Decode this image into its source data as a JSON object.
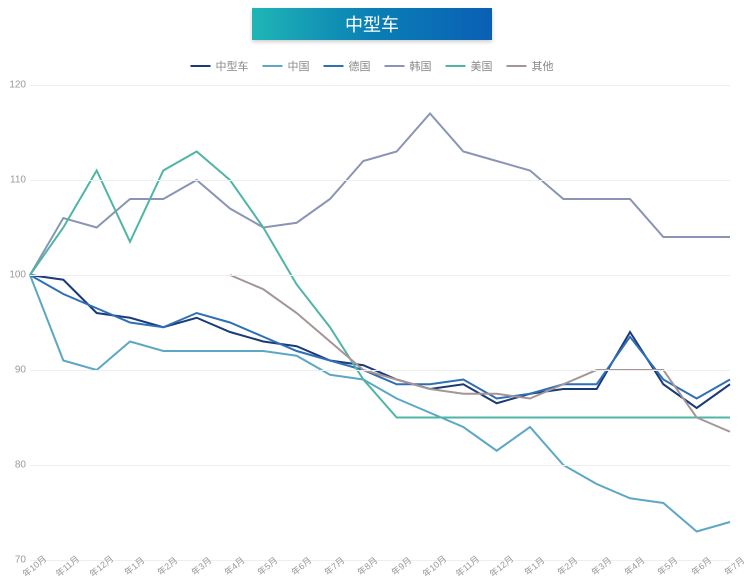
{
  "chart": {
    "type": "line",
    "title": "中型车",
    "title_bg_gradient": [
      "#1fb5b5",
      "#0a7fb5",
      "#0a5fb5"
    ],
    "title_color": "#ffffff",
    "title_fontsize": 18,
    "background_color": "#ffffff",
    "grid_color": "#eeeeee",
    "axis_label_color": "#999999",
    "axis_label_fontsize": 10,
    "legend_fontsize": 11,
    "legend_color": "#888888",
    "ylim": [
      70,
      120
    ],
    "ytick_step": 10,
    "yticks": [
      70,
      80,
      90,
      100,
      110,
      120
    ],
    "x_labels": [
      "年10月",
      "年11月",
      "年12月",
      "年1月",
      "年2月",
      "年3月",
      "年4月",
      "年5月",
      "年6月",
      "年7月",
      "年8月",
      "年9月",
      "年10月",
      "年11月",
      "年12月",
      "年1月",
      "年2月",
      "年3月",
      "年4月",
      "年5月",
      "年6月",
      "年7月"
    ],
    "series": [
      {
        "name": "中型车",
        "color": "#1a3a7a",
        "stroke_width": 2.5,
        "values": [
          100,
          99.5,
          96,
          95.5,
          94.5,
          95.5,
          94,
          93,
          92.5,
          91,
          90.5,
          89,
          88,
          88.5,
          86.5,
          87.5,
          88,
          88,
          94,
          88.5,
          86,
          88.5
        ]
      },
      {
        "name": "中国",
        "color": "#5ba8c5",
        "stroke_width": 2,
        "values": [
          100,
          91,
          90,
          93,
          92,
          92,
          92,
          92,
          91.5,
          89.5,
          89,
          87,
          85.5,
          84,
          81.5,
          84,
          80,
          78,
          76.5,
          76,
          73,
          74
        ]
      },
      {
        "name": "德国",
        "color": "#2e6fb5",
        "stroke_width": 2,
        "values": [
          100,
          98,
          96.5,
          95,
          94.5,
          96,
          95,
          93.5,
          92,
          91,
          90,
          88.5,
          88.5,
          89,
          87,
          87.5,
          88.5,
          88.5,
          93.5,
          89,
          87,
          89
        ]
      },
      {
        "name": "韩国",
        "color": "#8a95b5",
        "stroke_width": 2,
        "values": [
          100,
          106,
          105,
          108,
          108,
          110,
          107,
          105,
          105.5,
          108,
          112,
          113,
          117,
          113,
          112,
          111,
          108,
          108,
          108,
          104,
          104,
          104
        ]
      },
      {
        "name": "美国",
        "color": "#4fb5a5",
        "stroke_width": 2,
        "values": [
          100,
          105,
          111,
          103.5,
          111,
          113,
          110,
          105,
          99,
          94.5,
          89,
          85,
          85,
          85,
          85,
          85,
          85,
          85,
          85,
          85,
          85,
          85
        ]
      },
      {
        "name": "其他",
        "color": "#a59595",
        "stroke_width": 2,
        "values": [
          null,
          null,
          null,
          null,
          null,
          null,
          100,
          98.5,
          96,
          93,
          90,
          89,
          88,
          87.5,
          87.5,
          87,
          88.5,
          90,
          90,
          90,
          85,
          83.5
        ]
      }
    ]
  }
}
